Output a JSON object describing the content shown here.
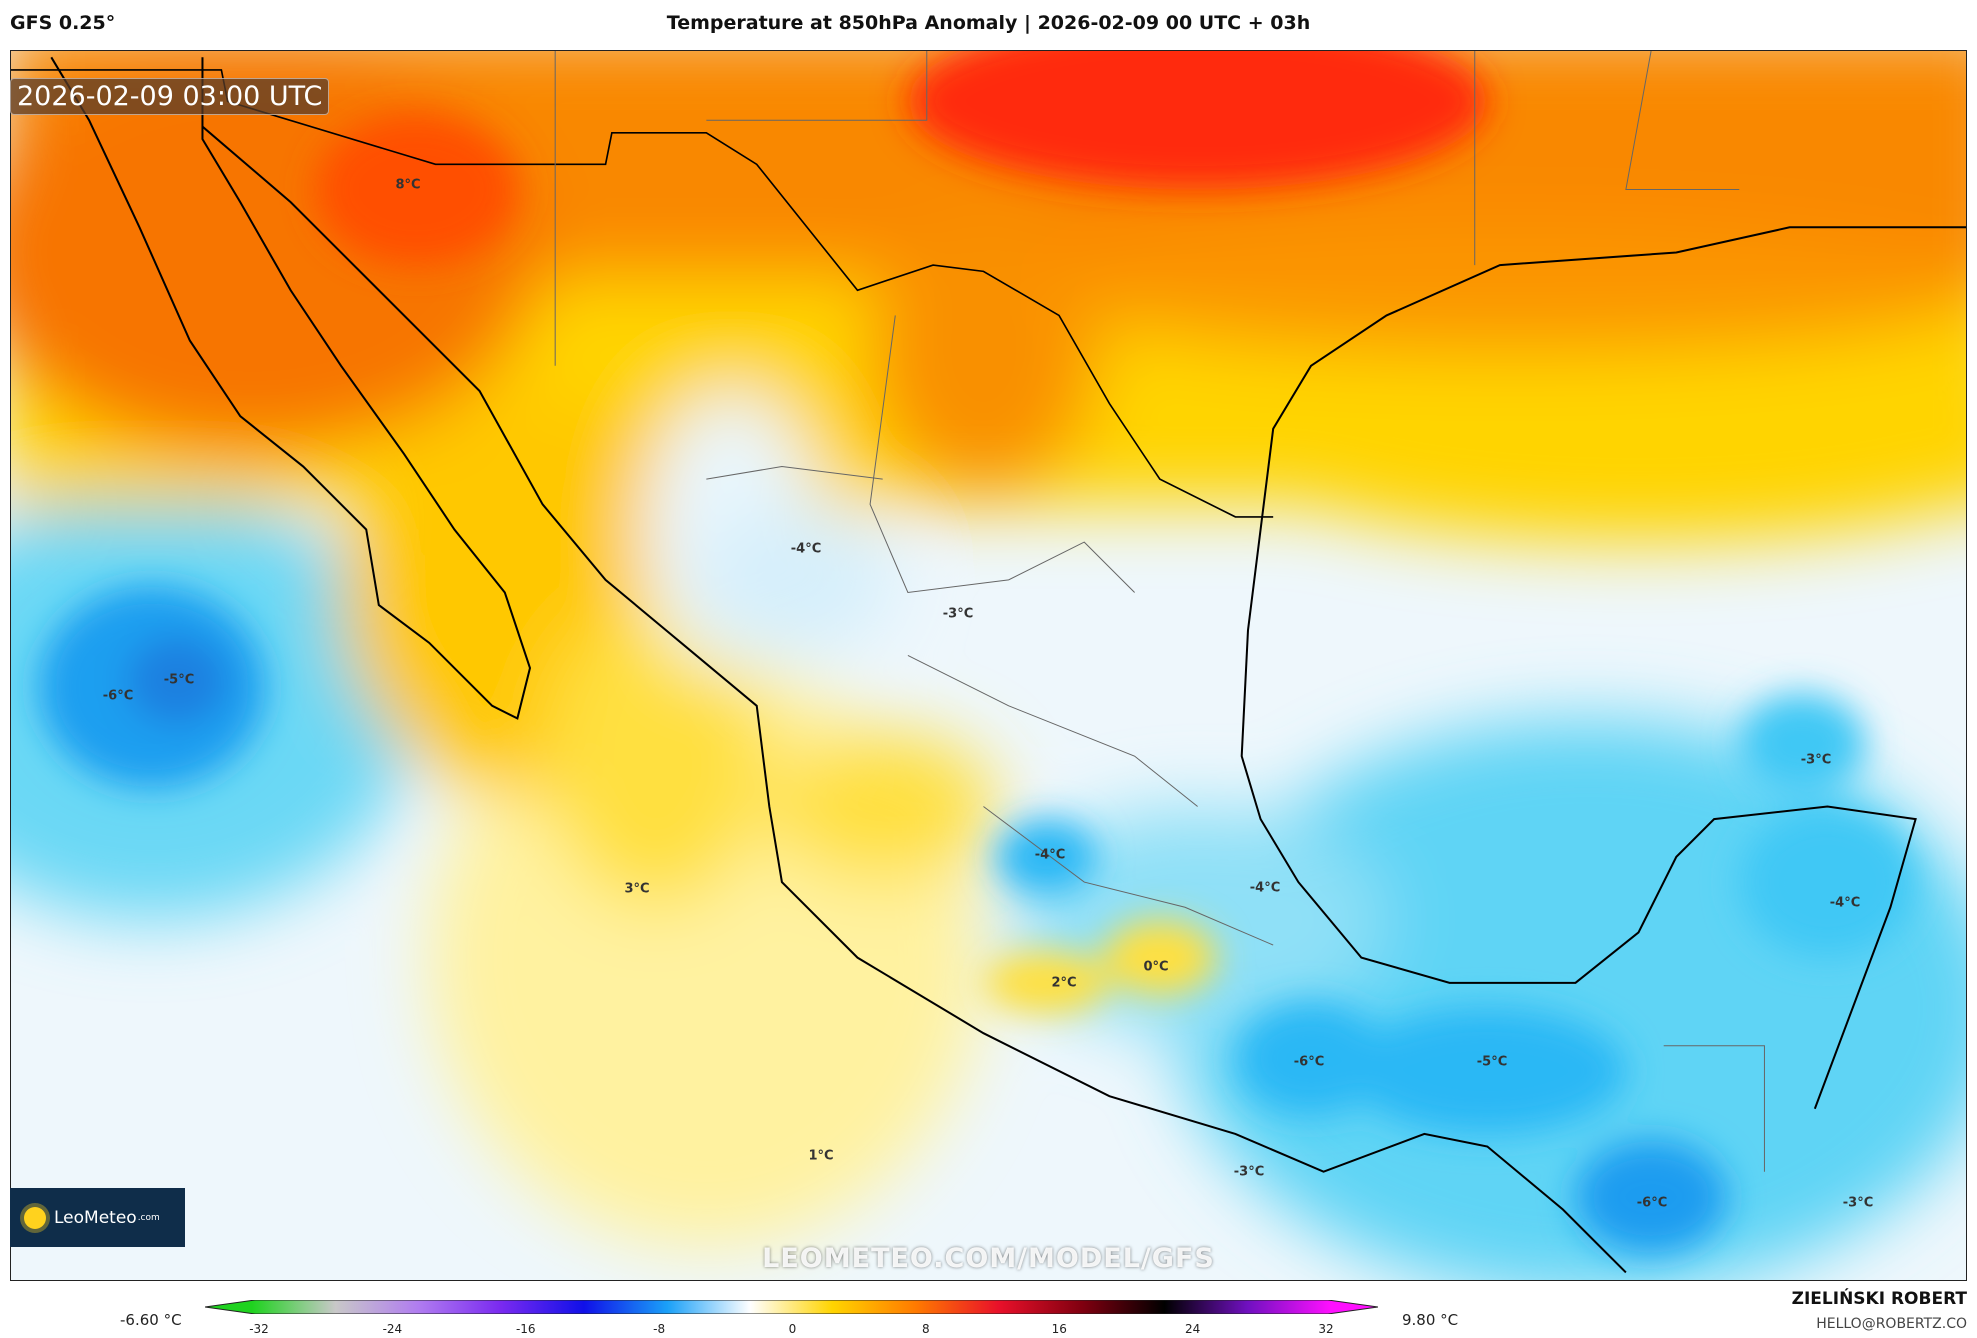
{
  "header": {
    "model": "GFS 0.25°",
    "title": "Temperature at 850hPa Anomaly | 2026-02-09 00 UTC + 03h"
  },
  "map": {
    "timestamp": "2026-02-09 03:00 UTC",
    "watermark": "LEOMETEO.COM/MODEL/GFS",
    "logo": {
      "name": "LeoMeteo",
      "suffix": ".com"
    },
    "contour_labels": [
      "8°C",
      "-4°C",
      "-3°C",
      "-6°C",
      "-5°C",
      "3°C",
      "2°C",
      "0°C",
      "1°C",
      "-4°C",
      "-4°C",
      "-3°C",
      "-4°C",
      "-6°C",
      "-5°C",
      "-3°C",
      "-6°C",
      "-3°C"
    ]
  },
  "legend": {
    "min_value": "-6.60 °C",
    "max_value": "9.80 °C",
    "ticks": [
      "-32",
      "-24",
      "-16",
      "-8",
      "0",
      "8",
      "16",
      "24",
      "32"
    ],
    "colors": [
      "#1fd21f",
      "#c8c8c8",
      "#b07cf0",
      "#7a2af0",
      "#1010e8",
      "#1aa0f8",
      "#ffffff",
      "#ffd400",
      "#ff7a00",
      "#e8102a",
      "#800010",
      "#000000",
      "#7010c0",
      "#ff10ff"
    ]
  },
  "credits": {
    "author": "ZIELIŃSKI ROBERT",
    "email": "HELLO@ROBERTZ.CO"
  }
}
